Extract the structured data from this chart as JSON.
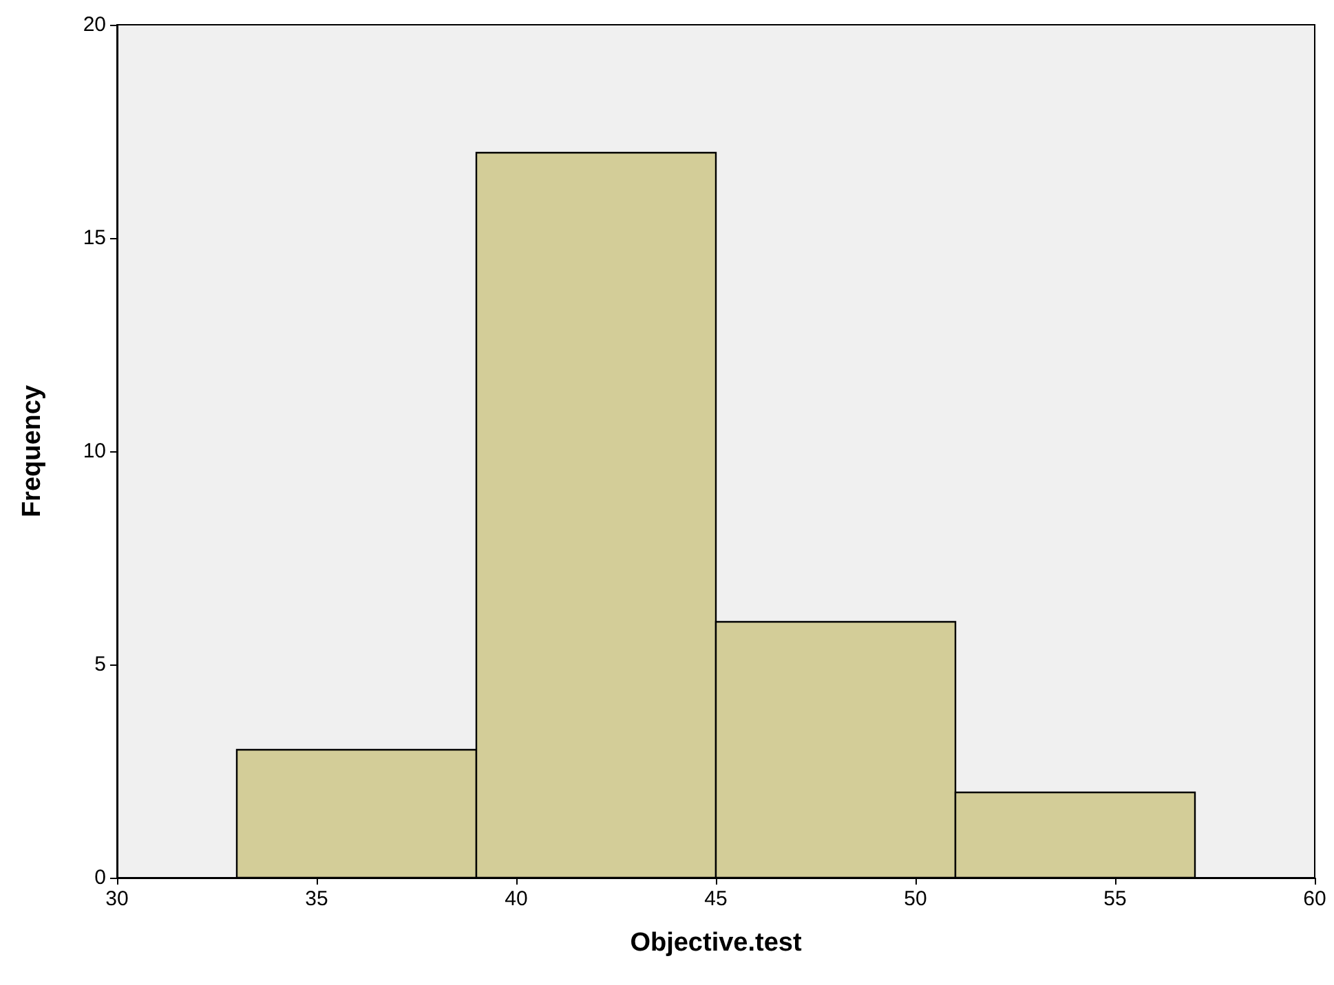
{
  "chart_data": {
    "type": "histogram",
    "xlabel": "Objective.test",
    "ylabel": "Frequency",
    "bins": [
      33,
      39,
      45,
      51,
      57
    ],
    "values": [
      3,
      17,
      6,
      2
    ],
    "color": "#d3cd98",
    "xlim": [
      30,
      60
    ],
    "xticks": [
      30,
      35,
      40,
      45,
      50,
      55,
      60
    ],
    "ylim": [
      0,
      20
    ],
    "yticks": [
      0,
      5,
      10,
      15,
      20
    ],
    "grid": false
  }
}
